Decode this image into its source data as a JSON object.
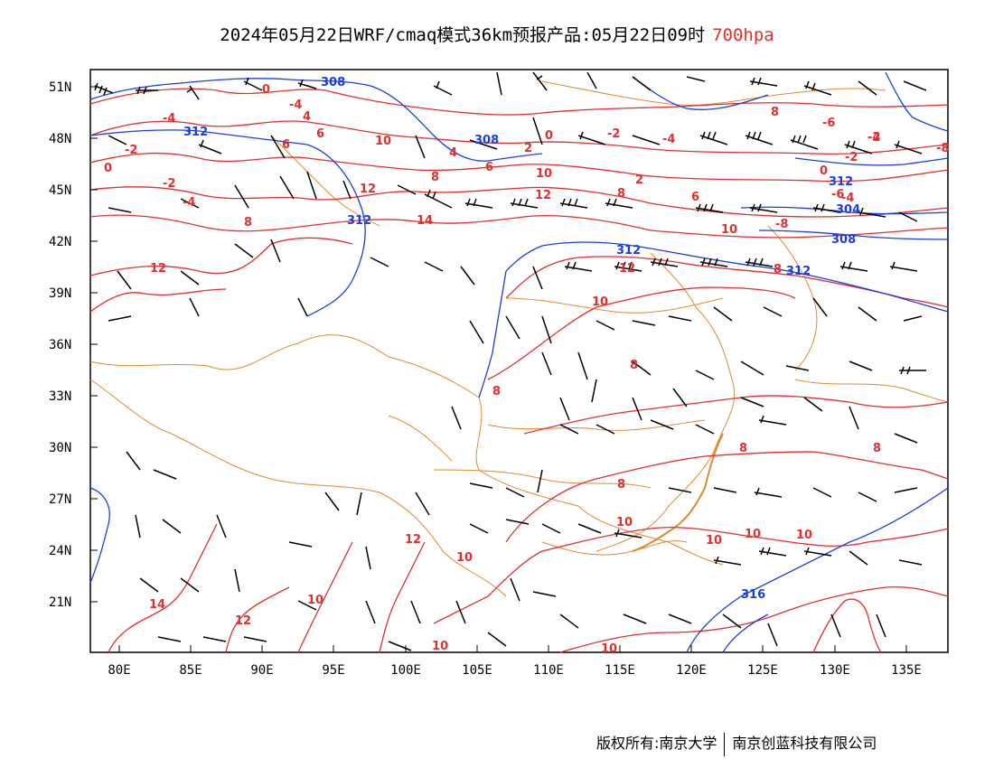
{
  "title": {
    "main": "2024年05月22日WRF/cmaq模式36km预报产品:05月22日09时",
    "level": "700hpa"
  },
  "map": {
    "lon_range": [
      78,
      138
    ],
    "lat_range": [
      18,
      52
    ],
    "lat_ticks": [
      "51N",
      "48N",
      "45N",
      "42N",
      "39N",
      "36N",
      "33N",
      "30N",
      "27N",
      "24N",
      "21N"
    ],
    "lon_ticks": [
      "80E",
      "85E",
      "90E",
      "95E",
      "100E",
      "105E",
      "110E",
      "115E",
      "120E",
      "125E",
      "130E",
      "135E"
    ],
    "temperature_labels": [
      "-4",
      "0",
      "-4",
      "-2",
      "0",
      "-2",
      "-4",
      "6",
      "4",
      "6",
      "8",
      "10",
      "8",
      "6",
      "4",
      "2",
      "0",
      "-2",
      "8",
      "-6",
      "-4",
      "-2",
      "0",
      "-2",
      "2",
      "6",
      "8",
      "10",
      "12",
      "12",
      "14",
      "10",
      "12",
      "-8",
      "8",
      "10",
      "8",
      "-6",
      "-4",
      "-8",
      "-4",
      "8",
      "8",
      "8",
      "10",
      "8",
      "12",
      "10",
      "12",
      "10",
      "10",
      "10",
      "10",
      "10",
      "10",
      "14",
      "12",
      "10",
      "10"
    ],
    "height_labels": [
      "308",
      "312",
      "308",
      "312",
      "312",
      "312",
      "304",
      "308",
      "312",
      "316"
    ],
    "colors": {
      "temperature": "#e03030",
      "height": "#1a3fe0",
      "border": "#e08a30",
      "barb": "#000000"
    }
  },
  "footer": {
    "left": "版权所有:南京大学",
    "right": "南京创蓝科技有限公司"
  }
}
